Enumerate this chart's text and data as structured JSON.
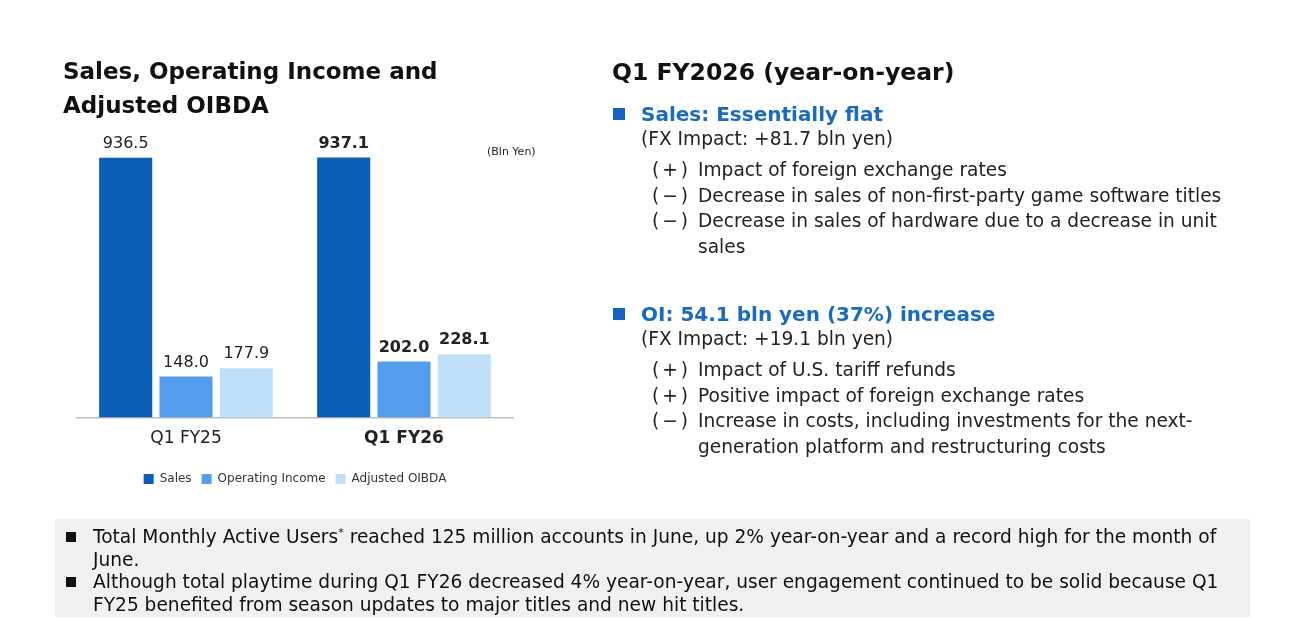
{
  "chart_data": [
    {
      "type": "bar",
      "title": "Sales, Operating Income and Adjusted OIBDA",
      "categories": [
        "Q1 FY25",
        "Q1 FY26"
      ],
      "series": [
        {
          "name": "Sales",
          "color": "#0a5eb6",
          "values": [
            936.5,
            937.1
          ],
          "value_labels": [
            "936.5",
            "937.1"
          ]
        },
        {
          "name": "Operating Income",
          "color": "#559ded",
          "values": [
            148.0,
            202.0
          ],
          "value_labels": [
            "148.0",
            "202.0"
          ]
        },
        {
          "name": "Adjusted OIBDA",
          "color": "#bfe0f8",
          "values": [
            177.9,
            228.1
          ],
          "value_labels": [
            "177.9",
            "228.1"
          ]
        }
      ],
      "legend": "bottom",
      "annotations": [
        "(Bln Yen)"
      ]
    },
    {
      "type": "other",
      "title": "Q1 FY2026 (year-on-year)"
    },
    {
      "type": "other",
      "title": "Sales: Essentially flat",
      "subtitle": "(FX Impact: +81.7 bln yen)",
      "annotations": [
        "(+) Impact of foreign exchange rates",
        "(−) Decrease in sales of non-first-party game software titles",
        "(−) Decrease in sales of hardware due to a decrease in unit sales"
      ]
    },
    {
      "type": "other",
      "title": "OI: 54.1 bln yen (37%) increase",
      "subtitle": "(FX Impact: +19.1 bln yen)",
      "annotations": [
        "(+) Impact of U.S. tariff refunds",
        "(+) Positive impact of foreign exchange rates",
        "(−) Increase in costs, including investments for the next-generation platform and restructuring costs"
      ]
    },
    {
      "type": "other",
      "annotations": [
        "Total Monthly Active Users$^{*}$ reached 125 million accounts in June, up 2% year-on-year and a record high for the month of June.",
        "Although total playtime during Q1 FY26 decreased 4% year-on-year, user engagement continued to be solid because Q1 FY25 benefited from season updates to major titles and new hit titles."
      ]
    }
  ]
}
